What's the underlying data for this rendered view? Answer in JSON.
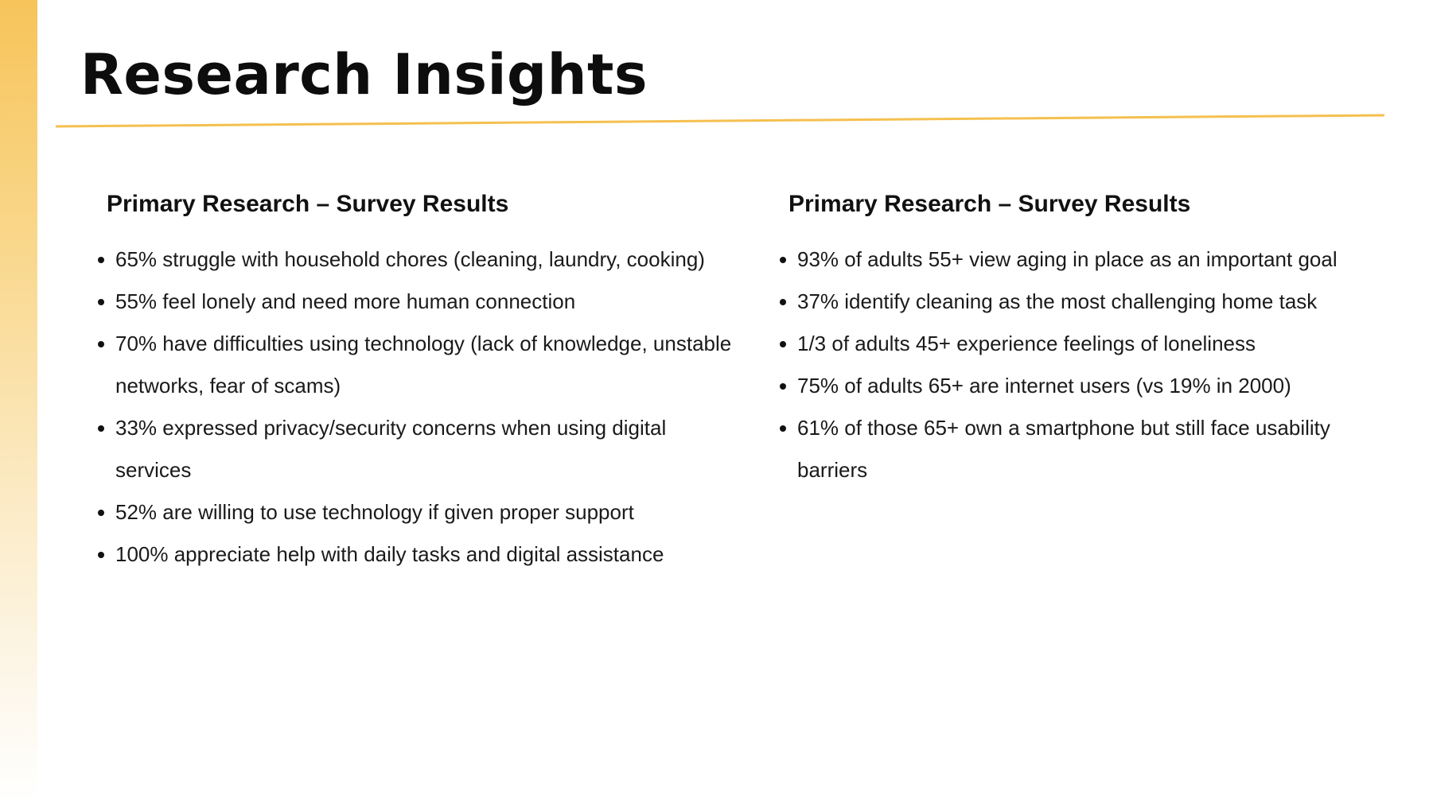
{
  "page": {
    "title": "Research Insights",
    "accent_color": "#f5c04f"
  },
  "left_column": {
    "heading": "Primary Research – Survey Results",
    "items": [
      "65% struggle with household chores (cleaning, laundry, cooking)",
      "55% feel lonely and need more human connection",
      "70% have difficulties using technology (lack of knowledge, unstable networks, fear of scams)",
      "33% expressed privacy/security concerns when using digital services",
      "52% are willing to use technology if given proper support",
      "100% appreciate help with daily tasks and digital assistance"
    ]
  },
  "right_column": {
    "heading": "Primary Research – Survey Results",
    "items": [
      "93% of adults 55+ view aging in place as an important goal",
      "37% identify cleaning as the most challenging home task",
      "1/3 of adults 45+ experience feelings of loneliness",
      "75% of adults 65+ are internet users (vs 19% in 2000)",
      "61% of those 65+ own a smartphone but still face usability barriers"
    ]
  }
}
